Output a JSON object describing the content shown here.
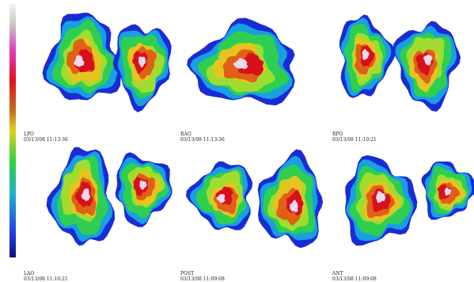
{
  "panels": [
    {
      "label": "LPO",
      "timestamp": "03/13/08 11:13:36"
    },
    {
      "label": "RAO",
      "timestamp": "03/13/08 11:13:36"
    },
    {
      "label": "RPO",
      "timestamp": "03/13/08 11:10:21"
    },
    {
      "label": "LAO",
      "timestamp": "03/13/08 11:10:21"
    },
    {
      "label": "POST",
      "timestamp": "03/13/08 11:09:08"
    },
    {
      "label": "ANT",
      "timestamp": "03/13/08 11:09:08"
    }
  ]
}
